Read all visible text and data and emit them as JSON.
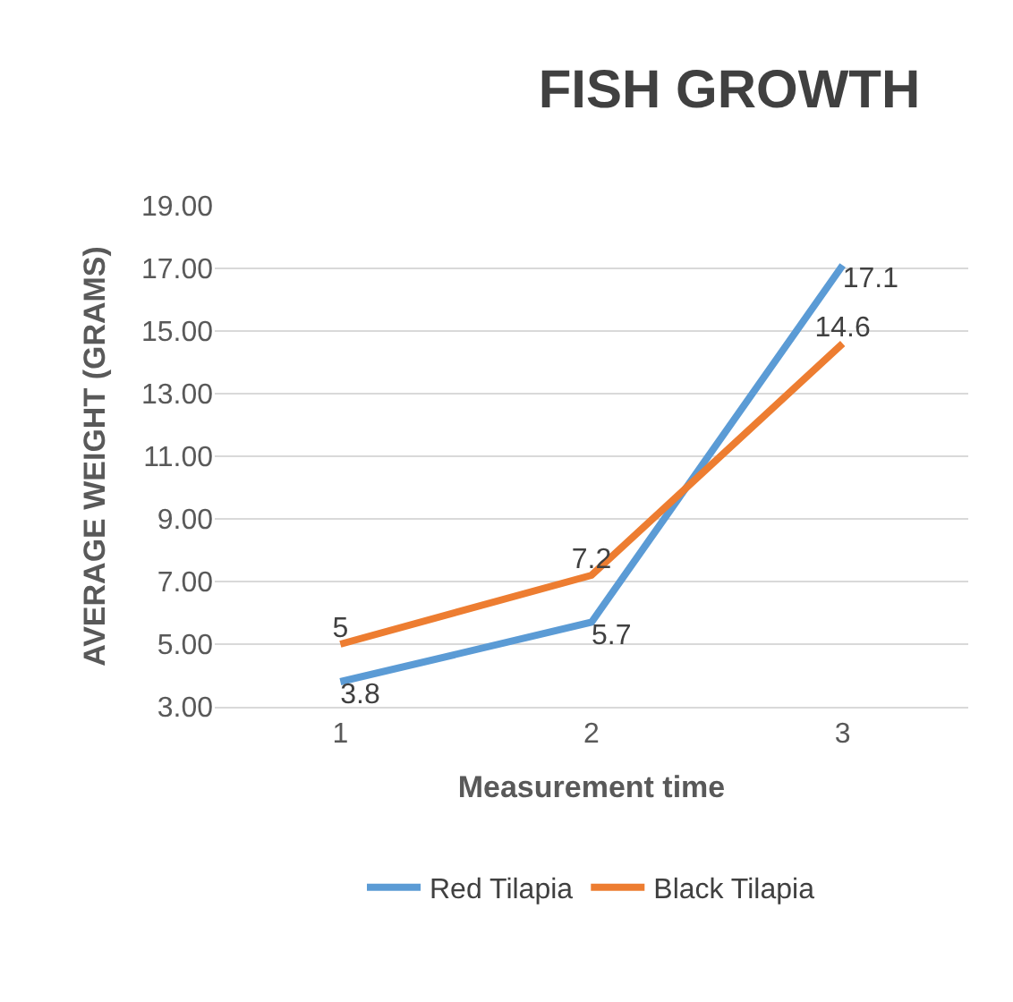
{
  "chart_data": {
    "type": "line",
    "title": "FISH GROWTH",
    "xlabel": "Measurement time",
    "ylabel": "AVERAGE WEIGHT (GRAMS)",
    "categories": [
      "1",
      "2",
      "3"
    ],
    "series": [
      {
        "name": "Red Tilapia",
        "color": "#5b9bd5",
        "values": [
          3.8,
          5.7,
          17.1
        ]
      },
      {
        "name": "Black Tilapia",
        "color": "#ed7d31",
        "values": [
          5,
          7.2,
          14.6
        ]
      }
    ],
    "ylim": [
      3,
      19
    ],
    "yticks": [
      {
        "value": 3,
        "label": "3.00"
      },
      {
        "value": 5,
        "label": "5.00"
      },
      {
        "value": 7,
        "label": "7.00"
      },
      {
        "value": 9,
        "label": "9.00"
      },
      {
        "value": 11,
        "label": "11.00"
      },
      {
        "value": 13,
        "label": "13.00"
      },
      {
        "value": 15,
        "label": "15.00"
      },
      {
        "value": 17,
        "label": "17.00"
      },
      {
        "value": 19,
        "label": "19.00"
      }
    ],
    "grid": "y",
    "legend": "bottom",
    "marker": "none",
    "line_style": "solid",
    "data_labels": true
  }
}
